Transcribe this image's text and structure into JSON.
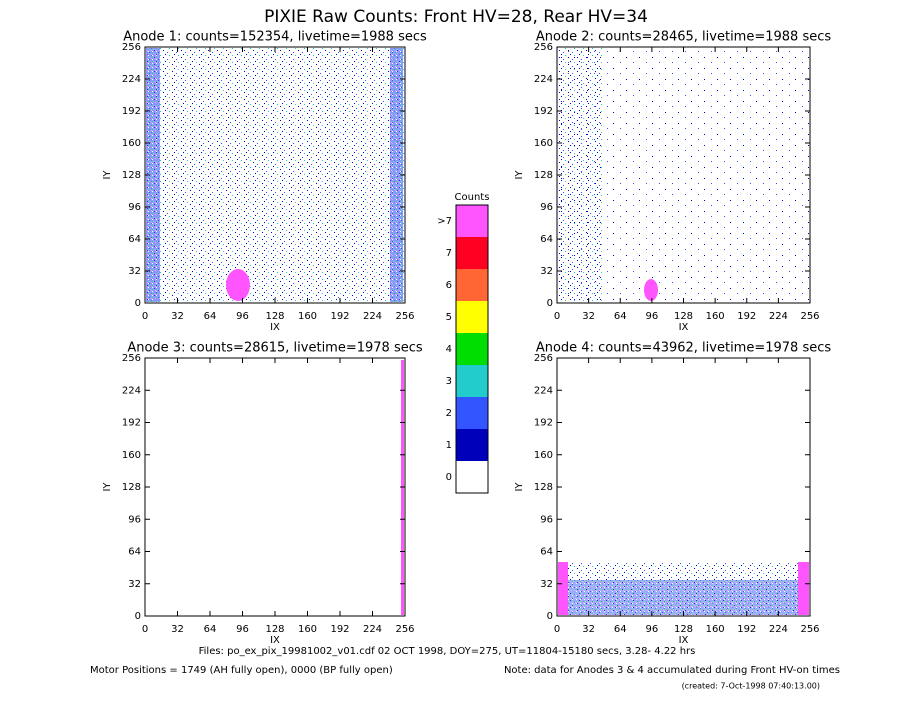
{
  "title": "PIXIE Raw Counts:  Front HV=28, Rear HV=34",
  "chart_data": [
    {
      "type": "heatmap",
      "title": "Anode 1: counts=152354, livetime=1988 secs",
      "xlabel": "IX",
      "ylabel": "IY",
      "xlim": [
        0,
        256
      ],
      "ylim": [
        0,
        256
      ],
      "xticks": [
        0,
        32,
        64,
        96,
        128,
        160,
        192,
        224,
        256
      ],
      "yticks": [
        0,
        32,
        64,
        96,
        128,
        160,
        192,
        224,
        256
      ]
    },
    {
      "type": "heatmap",
      "title": "Anode 2: counts=28465, livetime=1988 secs",
      "xlabel": "IX",
      "ylabel": "IY",
      "xlim": [
        0,
        256
      ],
      "ylim": [
        0,
        256
      ],
      "xticks": [
        0,
        32,
        64,
        96,
        128,
        160,
        192,
        224,
        256
      ],
      "yticks": [
        0,
        32,
        64,
        96,
        128,
        160,
        192,
        224,
        256
      ]
    },
    {
      "type": "heatmap",
      "title": "Anode 3: counts=28615, livetime=1978 secs",
      "xlabel": "IX",
      "ylabel": "IY",
      "xlim": [
        0,
        256
      ],
      "ylim": [
        0,
        256
      ],
      "xticks": [
        0,
        32,
        64,
        96,
        128,
        160,
        192,
        224,
        256
      ],
      "yticks": [
        0,
        32,
        64,
        96,
        128,
        160,
        192,
        224,
        256
      ]
    },
    {
      "type": "heatmap",
      "title": "Anode 4: counts=43962, livetime=1978 secs",
      "xlabel": "IX",
      "ylabel": "IY",
      "xlim": [
        0,
        256
      ],
      "ylim": [
        0,
        256
      ],
      "xticks": [
        0,
        32,
        64,
        96,
        128,
        160,
        192,
        224,
        256
      ],
      "yticks": [
        0,
        32,
        64,
        96,
        128,
        160,
        192,
        224,
        256
      ]
    }
  ],
  "colorbar": {
    "title": "Counts",
    "levels": [
      {
        "label": ">7",
        "color": "#ff55ff"
      },
      {
        "label": "7",
        "color": "#ff0022"
      },
      {
        "label": "6",
        "color": "#ff6633"
      },
      {
        "label": "5",
        "color": "#ffff00"
      },
      {
        "label": "4",
        "color": "#00dd00"
      },
      {
        "label": "3",
        "color": "#22cccc"
      },
      {
        "label": "2",
        "color": "#3355ff"
      },
      {
        "label": "1",
        "color": "#0000bb"
      },
      {
        "label": "0",
        "color": "#ffffff"
      }
    ]
  },
  "footer": {
    "files": "Files: po_ex_pix_19981002_v01.cdf    02 OCT 1998, DOY=275, UT=11804-15180 secs,  3.28- 4.22 hrs",
    "motor": "Motor Positions = 1749 (AH fully open), 0000 (BP fully open)",
    "note": "Note: data for Anodes 3 & 4 accumulated during Front HV-on times",
    "created": "(created:  7-Oct-1998 07:40:13.00)"
  }
}
